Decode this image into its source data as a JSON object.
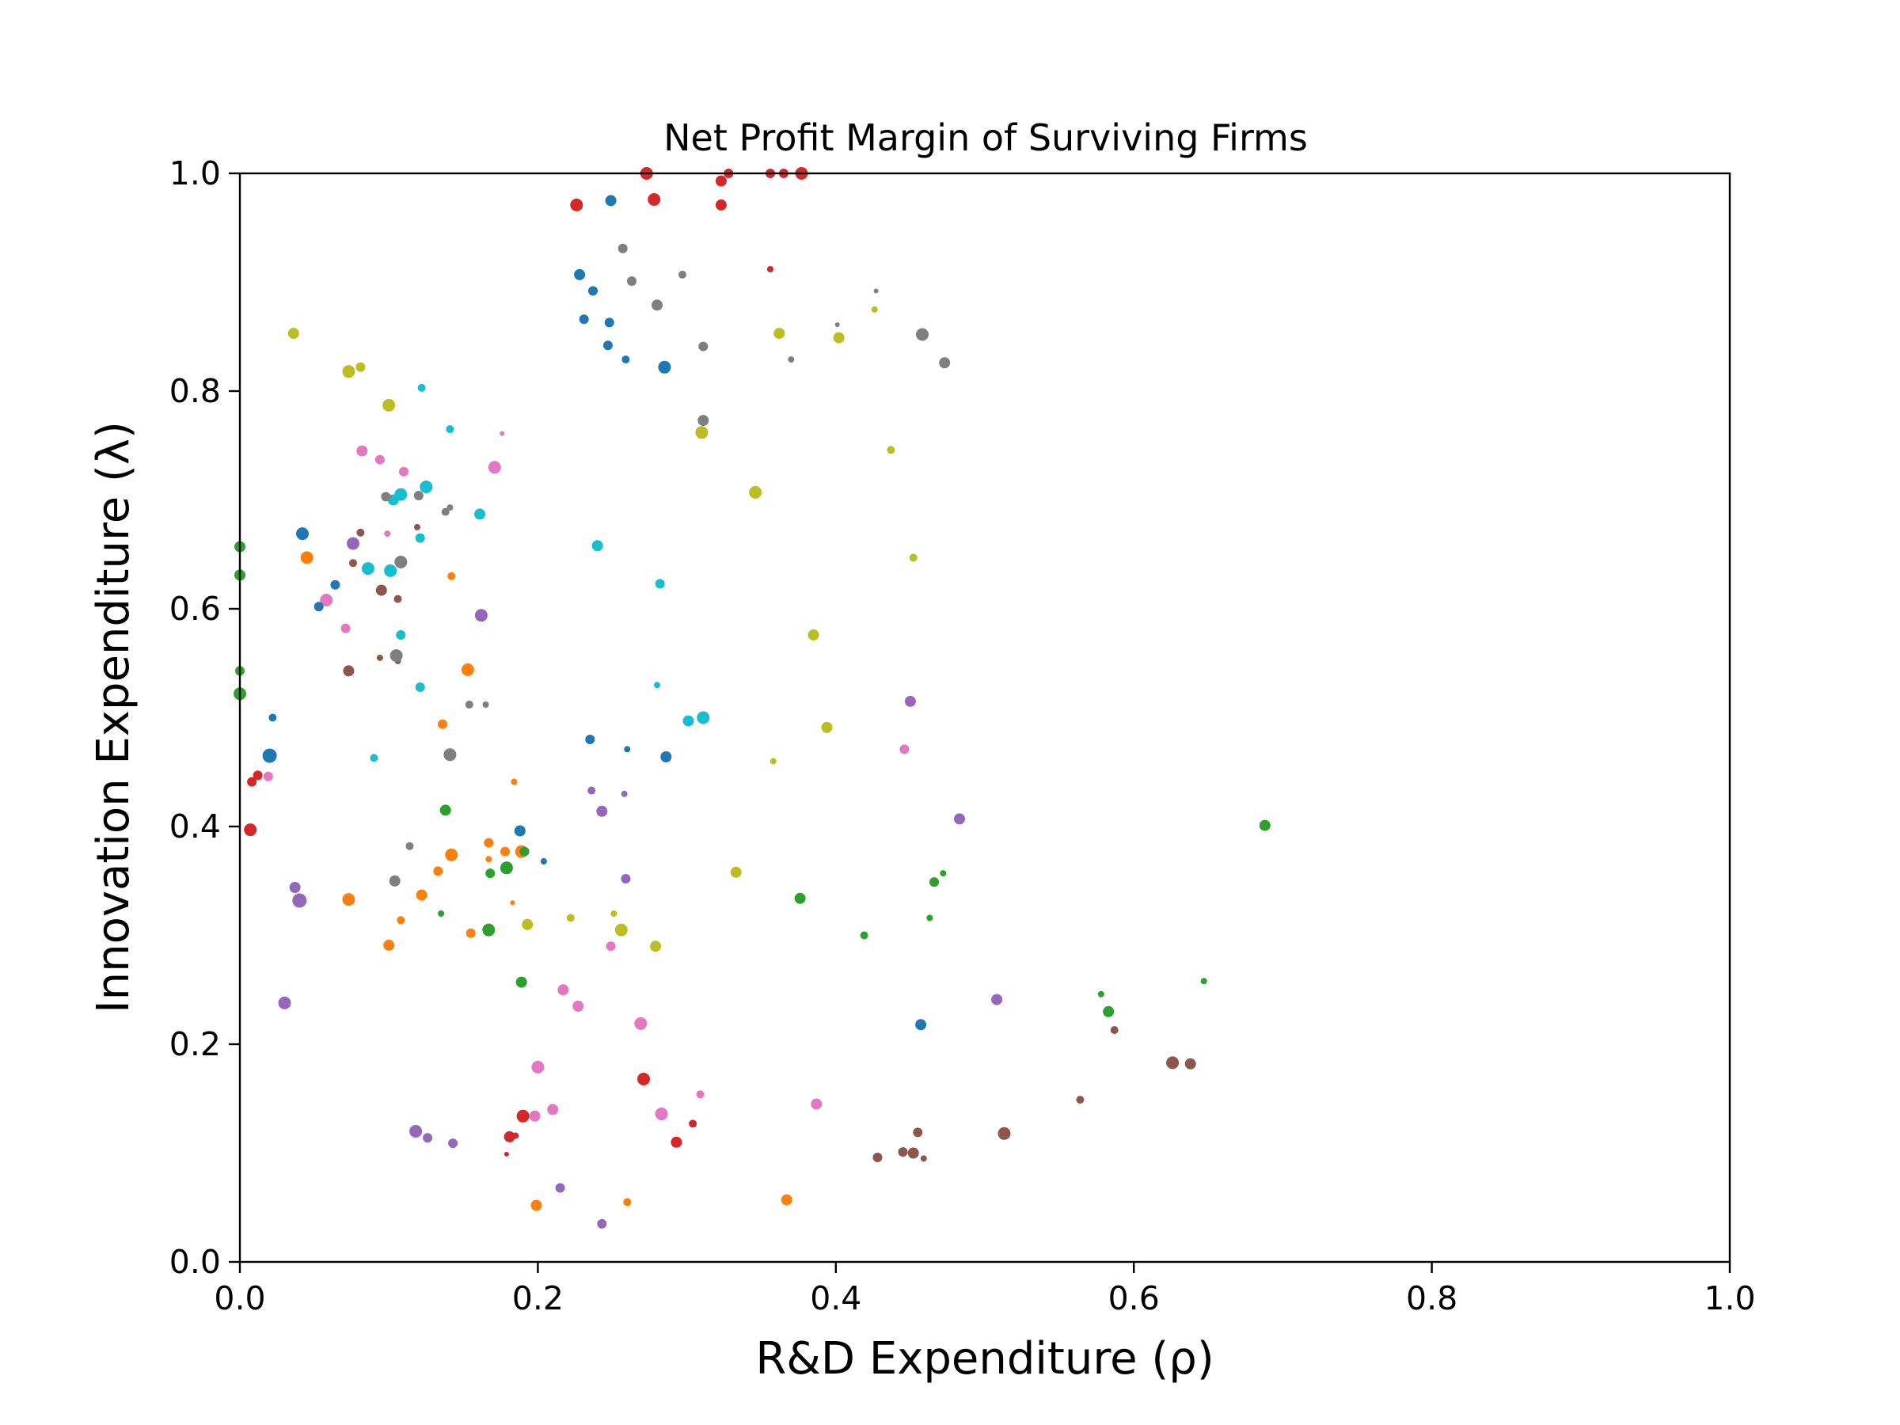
{
  "chart_data": {
    "type": "scatter",
    "title": "Net Profit Margin of Surviving Firms",
    "xlabel": "R&D Expenditure (ρ)",
    "ylabel": "Innovation Expenditure (λ)",
    "xlim": [
      0,
      1
    ],
    "ylim": [
      0,
      1
    ],
    "xticks": [
      "0.0",
      "0.2",
      "0.4",
      "0.6",
      "0.8",
      "1.0"
    ],
    "yticks": [
      "0.0",
      "0.2",
      "0.4",
      "0.6",
      "0.8",
      "1.0"
    ],
    "grid": false,
    "legend": "none",
    "colors": {
      "blue": "#1f77b4",
      "orange": "#ff7f0e",
      "green": "#2ca02c",
      "red": "#d62728",
      "purple": "#9467bd",
      "brown": "#8c564b",
      "pink": "#e377c2",
      "gray": "#7f7f7f",
      "olive": "#bcbd22",
      "cyan": "#17becf"
    },
    "points": [
      {
        "x": 0.226,
        "y": 0.971,
        "c": "red",
        "s": 8
      },
      {
        "x": 0.273,
        "y": 1.0,
        "c": "red",
        "s": 8
      },
      {
        "x": 0.278,
        "y": 0.976,
        "c": "red",
        "s": 8
      },
      {
        "x": 0.323,
        "y": 0.993,
        "c": "red",
        "s": 7
      },
      {
        "x": 0.328,
        "y": 1.0,
        "c": "red",
        "s": 6
      },
      {
        "x": 0.323,
        "y": 0.971,
        "c": "red",
        "s": 7
      },
      {
        "x": 0.356,
        "y": 1.0,
        "c": "red",
        "s": 6
      },
      {
        "x": 0.365,
        "y": 1.0,
        "c": "red",
        "s": 6
      },
      {
        "x": 0.377,
        "y": 1.0,
        "c": "red",
        "s": 8
      },
      {
        "x": 0.356,
        "y": 0.912,
        "c": "red",
        "s": 4
      },
      {
        "x": 0.249,
        "y": 0.975,
        "c": "blue",
        "s": 7
      },
      {
        "x": 0.228,
        "y": 0.907,
        "c": "blue",
        "s": 7
      },
      {
        "x": 0.237,
        "y": 0.892,
        "c": "blue",
        "s": 6
      },
      {
        "x": 0.231,
        "y": 0.866,
        "c": "blue",
        "s": 6
      },
      {
        "x": 0.248,
        "y": 0.863,
        "c": "blue",
        "s": 6
      },
      {
        "x": 0.247,
        "y": 0.842,
        "c": "blue",
        "s": 6
      },
      {
        "x": 0.259,
        "y": 0.829,
        "c": "blue",
        "s": 5
      },
      {
        "x": 0.285,
        "y": 0.822,
        "c": "blue",
        "s": 8
      },
      {
        "x": 0.257,
        "y": 0.931,
        "c": "gray",
        "s": 6
      },
      {
        "x": 0.263,
        "y": 0.901,
        "c": "gray",
        "s": 6
      },
      {
        "x": 0.297,
        "y": 0.907,
        "c": "gray",
        "s": 5
      },
      {
        "x": 0.28,
        "y": 0.879,
        "c": "gray",
        "s": 7
      },
      {
        "x": 0.311,
        "y": 0.841,
        "c": "gray",
        "s": 6
      },
      {
        "x": 0.37,
        "y": 0.829,
        "c": "gray",
        "s": 4
      },
      {
        "x": 0.427,
        "y": 0.892,
        "c": "gray",
        "s": 3
      },
      {
        "x": 0.401,
        "y": 0.861,
        "c": "gray",
        "s": 3
      },
      {
        "x": 0.458,
        "y": 0.852,
        "c": "gray",
        "s": 8
      },
      {
        "x": 0.473,
        "y": 0.826,
        "c": "gray",
        "s": 7
      },
      {
        "x": 0.311,
        "y": 0.773,
        "c": "gray",
        "s": 7
      },
      {
        "x": 0.31,
        "y": 0.762,
        "c": "olive",
        "s": 8
      },
      {
        "x": 0.362,
        "y": 0.853,
        "c": "olive",
        "s": 7
      },
      {
        "x": 0.402,
        "y": 0.849,
        "c": "olive",
        "s": 7
      },
      {
        "x": 0.426,
        "y": 0.875,
        "c": "olive",
        "s": 4
      },
      {
        "x": 0.437,
        "y": 0.746,
        "c": "olive",
        "s": 5
      },
      {
        "x": 0.346,
        "y": 0.707,
        "c": "olive",
        "s": 8
      },
      {
        "x": 0.452,
        "y": 0.647,
        "c": "olive",
        "s": 5
      },
      {
        "x": 0.385,
        "y": 0.576,
        "c": "olive",
        "s": 7
      },
      {
        "x": 0.394,
        "y": 0.491,
        "c": "olive",
        "s": 7
      },
      {
        "x": 0.358,
        "y": 0.46,
        "c": "olive",
        "s": 4
      },
      {
        "x": 0.333,
        "y": 0.358,
        "c": "olive",
        "s": 7
      },
      {
        "x": 0.036,
        "y": 0.853,
        "c": "olive",
        "s": 7
      },
      {
        "x": 0.073,
        "y": 0.818,
        "c": "olive",
        "s": 8
      },
      {
        "x": 0.081,
        "y": 0.822,
        "c": "olive",
        "s": 6
      },
      {
        "x": 0.1,
        "y": 0.787,
        "c": "olive",
        "s": 8
      },
      {
        "x": 0.193,
        "y": 0.31,
        "c": "olive",
        "s": 7
      },
      {
        "x": 0.222,
        "y": 0.316,
        "c": "olive",
        "s": 5
      },
      {
        "x": 0.251,
        "y": 0.32,
        "c": "olive",
        "s": 4
      },
      {
        "x": 0.256,
        "y": 0.305,
        "c": "olive",
        "s": 8
      },
      {
        "x": 0.279,
        "y": 0.29,
        "c": "olive",
        "s": 7
      },
      {
        "x": 0.122,
        "y": 0.803,
        "c": "cyan",
        "s": 5
      },
      {
        "x": 0.141,
        "y": 0.765,
        "c": "cyan",
        "s": 5
      },
      {
        "x": 0.125,
        "y": 0.712,
        "c": "cyan",
        "s": 8
      },
      {
        "x": 0.108,
        "y": 0.705,
        "c": "cyan",
        "s": 8
      },
      {
        "x": 0.103,
        "y": 0.7,
        "c": "cyan",
        "s": 7
      },
      {
        "x": 0.161,
        "y": 0.687,
        "c": "cyan",
        "s": 7
      },
      {
        "x": 0.121,
        "y": 0.665,
        "c": "cyan",
        "s": 6
      },
      {
        "x": 0.086,
        "y": 0.637,
        "c": "cyan",
        "s": 8
      },
      {
        "x": 0.101,
        "y": 0.635,
        "c": "cyan",
        "s": 8
      },
      {
        "x": 0.108,
        "y": 0.576,
        "c": "cyan",
        "s": 6
      },
      {
        "x": 0.121,
        "y": 0.528,
        "c": "cyan",
        "s": 6
      },
      {
        "x": 0.24,
        "y": 0.658,
        "c": "cyan",
        "s": 7
      },
      {
        "x": 0.282,
        "y": 0.623,
        "c": "cyan",
        "s": 6
      },
      {
        "x": 0.28,
        "y": 0.53,
        "c": "cyan",
        "s": 4
      },
      {
        "x": 0.301,
        "y": 0.497,
        "c": "cyan",
        "s": 7
      },
      {
        "x": 0.311,
        "y": 0.5,
        "c": "cyan",
        "s": 8
      },
      {
        "x": 0.09,
        "y": 0.463,
        "c": "cyan",
        "s": 5
      },
      {
        "x": 0.082,
        "y": 0.745,
        "c": "pink",
        "s": 7
      },
      {
        "x": 0.094,
        "y": 0.737,
        "c": "pink",
        "s": 6
      },
      {
        "x": 0.11,
        "y": 0.726,
        "c": "pink",
        "s": 6
      },
      {
        "x": 0.171,
        "y": 0.73,
        "c": "pink",
        "s": 8
      },
      {
        "x": 0.176,
        "y": 0.761,
        "c": "pink",
        "s": 3
      },
      {
        "x": 0.099,
        "y": 0.669,
        "c": "pink",
        "s": 4
      },
      {
        "x": 0.058,
        "y": 0.608,
        "c": "pink",
        "s": 8
      },
      {
        "x": 0.071,
        "y": 0.582,
        "c": "pink",
        "s": 6
      },
      {
        "x": 0.019,
        "y": 0.446,
        "c": "pink",
        "s": 6
      },
      {
        "x": 0.446,
        "y": 0.471,
        "c": "pink",
        "s": 6
      },
      {
        "x": 0.217,
        "y": 0.25,
        "c": "pink",
        "s": 7
      },
      {
        "x": 0.227,
        "y": 0.235,
        "c": "pink",
        "s": 7
      },
      {
        "x": 0.269,
        "y": 0.219,
        "c": "pink",
        "s": 8
      },
      {
        "x": 0.2,
        "y": 0.179,
        "c": "pink",
        "s": 8
      },
      {
        "x": 0.21,
        "y": 0.14,
        "c": "pink",
        "s": 7
      },
      {
        "x": 0.198,
        "y": 0.134,
        "c": "pink",
        "s": 7
      },
      {
        "x": 0.283,
        "y": 0.136,
        "c": "pink",
        "s": 8
      },
      {
        "x": 0.309,
        "y": 0.154,
        "c": "pink",
        "s": 5
      },
      {
        "x": 0.387,
        "y": 0.145,
        "c": "pink",
        "s": 7
      },
      {
        "x": 0.249,
        "y": 0.29,
        "c": "pink",
        "s": 6
      },
      {
        "x": 0.042,
        "y": 0.669,
        "c": "blue",
        "s": 8
      },
      {
        "x": 0.064,
        "y": 0.622,
        "c": "blue",
        "s": 6
      },
      {
        "x": 0.053,
        "y": 0.602,
        "c": "blue",
        "s": 6
      },
      {
        "x": 0.022,
        "y": 0.5,
        "c": "blue",
        "s": 5
      },
      {
        "x": 0.02,
        "y": 0.465,
        "c": "blue",
        "s": 9
      },
      {
        "x": 0.235,
        "y": 0.48,
        "c": "blue",
        "s": 6
      },
      {
        "x": 0.26,
        "y": 0.471,
        "c": "blue",
        "s": 4
      },
      {
        "x": 0.286,
        "y": 0.464,
        "c": "blue",
        "s": 7
      },
      {
        "x": 0.188,
        "y": 0.396,
        "c": "blue",
        "s": 7
      },
      {
        "x": 0.204,
        "y": 0.368,
        "c": "blue",
        "s": 4
      },
      {
        "x": 0.457,
        "y": 0.218,
        "c": "blue",
        "s": 7
      },
      {
        "x": 0.045,
        "y": 0.647,
        "c": "orange",
        "s": 8
      },
      {
        "x": 0.142,
        "y": 0.63,
        "c": "orange",
        "s": 5
      },
      {
        "x": 0.153,
        "y": 0.544,
        "c": "orange",
        "s": 8
      },
      {
        "x": 0.136,
        "y": 0.494,
        "c": "orange",
        "s": 6
      },
      {
        "x": 0.184,
        "y": 0.441,
        "c": "orange",
        "s": 4
      },
      {
        "x": 0.167,
        "y": 0.385,
        "c": "orange",
        "s": 6
      },
      {
        "x": 0.178,
        "y": 0.377,
        "c": "orange",
        "s": 6
      },
      {
        "x": 0.189,
        "y": 0.377,
        "c": "orange",
        "s": 8
      },
      {
        "x": 0.142,
        "y": 0.374,
        "c": "orange",
        "s": 8
      },
      {
        "x": 0.167,
        "y": 0.37,
        "c": "orange",
        "s": 4
      },
      {
        "x": 0.133,
        "y": 0.359,
        "c": "orange",
        "s": 6
      },
      {
        "x": 0.122,
        "y": 0.337,
        "c": "orange",
        "s": 7
      },
      {
        "x": 0.073,
        "y": 0.333,
        "c": "orange",
        "s": 8
      },
      {
        "x": 0.183,
        "y": 0.33,
        "c": "orange",
        "s": 3
      },
      {
        "x": 0.108,
        "y": 0.314,
        "c": "orange",
        "s": 5
      },
      {
        "x": 0.155,
        "y": 0.302,
        "c": "orange",
        "s": 6
      },
      {
        "x": 0.1,
        "y": 0.291,
        "c": "orange",
        "s": 7
      },
      {
        "x": 0.199,
        "y": 0.052,
        "c": "orange",
        "s": 7
      },
      {
        "x": 0.26,
        "y": 0.055,
        "c": "orange",
        "s": 5
      },
      {
        "x": 0.367,
        "y": 0.057,
        "c": "orange",
        "s": 7
      },
      {
        "x": 0.0,
        "y": 0.657,
        "c": "green",
        "s": 7
      },
      {
        "x": 0.0,
        "y": 0.631,
        "c": "green",
        "s": 7
      },
      {
        "x": 0.0,
        "y": 0.543,
        "c": "green",
        "s": 6
      },
      {
        "x": 0.0,
        "y": 0.522,
        "c": "green",
        "s": 8
      },
      {
        "x": 0.138,
        "y": 0.415,
        "c": "green",
        "s": 7
      },
      {
        "x": 0.191,
        "y": 0.377,
        "c": "green",
        "s": 6
      },
      {
        "x": 0.179,
        "y": 0.362,
        "c": "green",
        "s": 8
      },
      {
        "x": 0.168,
        "y": 0.357,
        "c": "green",
        "s": 6
      },
      {
        "x": 0.135,
        "y": 0.32,
        "c": "green",
        "s": 4
      },
      {
        "x": 0.167,
        "y": 0.305,
        "c": "green",
        "s": 8
      },
      {
        "x": 0.189,
        "y": 0.257,
        "c": "green",
        "s": 7
      },
      {
        "x": 0.376,
        "y": 0.334,
        "c": "green",
        "s": 7
      },
      {
        "x": 0.419,
        "y": 0.3,
        "c": "green",
        "s": 5
      },
      {
        "x": 0.463,
        "y": 0.316,
        "c": "green",
        "s": 4
      },
      {
        "x": 0.466,
        "y": 0.349,
        "c": "green",
        "s": 6
      },
      {
        "x": 0.472,
        "y": 0.357,
        "c": "green",
        "s": 4
      },
      {
        "x": 0.578,
        "y": 0.246,
        "c": "green",
        "s": 4
      },
      {
        "x": 0.583,
        "y": 0.23,
        "c": "green",
        "s": 7
      },
      {
        "x": 0.647,
        "y": 0.258,
        "c": "green",
        "s": 4
      },
      {
        "x": 0.688,
        "y": 0.401,
        "c": "green",
        "s": 7
      },
      {
        "x": 0.008,
        "y": 0.441,
        "c": "red",
        "s": 6
      },
      {
        "x": 0.012,
        "y": 0.447,
        "c": "red",
        "s": 6
      },
      {
        "x": 0.007,
        "y": 0.397,
        "c": "red",
        "s": 8
      },
      {
        "x": 0.271,
        "y": 0.168,
        "c": "red",
        "s": 8
      },
      {
        "x": 0.19,
        "y": 0.134,
        "c": "red",
        "s": 8
      },
      {
        "x": 0.304,
        "y": 0.127,
        "c": "red",
        "s": 5
      },
      {
        "x": 0.181,
        "y": 0.115,
        "c": "red",
        "s": 7
      },
      {
        "x": 0.185,
        "y": 0.116,
        "c": "red",
        "s": 4
      },
      {
        "x": 0.293,
        "y": 0.11,
        "c": "red",
        "s": 7
      },
      {
        "x": 0.179,
        "y": 0.099,
        "c": "red",
        "s": 3
      },
      {
        "x": 0.162,
        "y": 0.594,
        "c": "purple",
        "s": 8
      },
      {
        "x": 0.45,
        "y": 0.515,
        "c": "purple",
        "s": 7
      },
      {
        "x": 0.236,
        "y": 0.433,
        "c": "purple",
        "s": 5
      },
      {
        "x": 0.258,
        "y": 0.43,
        "c": "purple",
        "s": 4
      },
      {
        "x": 0.243,
        "y": 0.414,
        "c": "purple",
        "s": 7
      },
      {
        "x": 0.483,
        "y": 0.407,
        "c": "purple",
        "s": 7
      },
      {
        "x": 0.259,
        "y": 0.352,
        "c": "purple",
        "s": 6
      },
      {
        "x": 0.037,
        "y": 0.344,
        "c": "purple",
        "s": 7
      },
      {
        "x": 0.04,
        "y": 0.332,
        "c": "purple",
        "s": 9
      },
      {
        "x": 0.03,
        "y": 0.238,
        "c": "purple",
        "s": 8
      },
      {
        "x": 0.508,
        "y": 0.241,
        "c": "purple",
        "s": 7
      },
      {
        "x": 0.118,
        "y": 0.12,
        "c": "purple",
        "s": 8
      },
      {
        "x": 0.126,
        "y": 0.114,
        "c": "purple",
        "s": 6
      },
      {
        "x": 0.143,
        "y": 0.109,
        "c": "purple",
        "s": 6
      },
      {
        "x": 0.215,
        "y": 0.068,
        "c": "purple",
        "s": 6
      },
      {
        "x": 0.243,
        "y": 0.035,
        "c": "purple",
        "s": 6
      },
      {
        "x": 0.081,
        "y": 0.67,
        "c": "brown",
        "s": 5
      },
      {
        "x": 0.076,
        "y": 0.642,
        "c": "brown",
        "s": 5
      },
      {
        "x": 0.095,
        "y": 0.617,
        "c": "brown",
        "s": 7
      },
      {
        "x": 0.106,
        "y": 0.609,
        "c": "brown",
        "s": 5
      },
      {
        "x": 0.073,
        "y": 0.543,
        "c": "brown",
        "s": 7
      },
      {
        "x": 0.094,
        "y": 0.555,
        "c": "brown",
        "s": 4
      },
      {
        "x": 0.106,
        "y": 0.552,
        "c": "brown",
        "s": 4
      },
      {
        "x": 0.119,
        "y": 0.675,
        "c": "brown",
        "s": 4
      },
      {
        "x": 0.626,
        "y": 0.183,
        "c": "brown",
        "s": 8
      },
      {
        "x": 0.638,
        "y": 0.182,
        "c": "brown",
        "s": 7
      },
      {
        "x": 0.587,
        "y": 0.213,
        "c": "brown",
        "s": 5
      },
      {
        "x": 0.564,
        "y": 0.149,
        "c": "brown",
        "s": 5
      },
      {
        "x": 0.513,
        "y": 0.118,
        "c": "brown",
        "s": 8
      },
      {
        "x": 0.455,
        "y": 0.119,
        "c": "brown",
        "s": 6
      },
      {
        "x": 0.428,
        "y": 0.096,
        "c": "brown",
        "s": 6
      },
      {
        "x": 0.445,
        "y": 0.101,
        "c": "brown",
        "s": 6
      },
      {
        "x": 0.452,
        "y": 0.1,
        "c": "brown",
        "s": 7
      },
      {
        "x": 0.459,
        "y": 0.095,
        "c": "brown",
        "s": 4
      },
      {
        "x": 0.098,
        "y": 0.703,
        "c": "gray",
        "s": 6
      },
      {
        "x": 0.12,
        "y": 0.704,
        "c": "gray",
        "s": 6
      },
      {
        "x": 0.141,
        "y": 0.693,
        "c": "gray",
        "s": 4
      },
      {
        "x": 0.138,
        "y": 0.689,
        "c": "gray",
        "s": 5
      },
      {
        "x": 0.108,
        "y": 0.643,
        "c": "gray",
        "s": 8
      },
      {
        "x": 0.105,
        "y": 0.557,
        "c": "gray",
        "s": 8
      },
      {
        "x": 0.154,
        "y": 0.512,
        "c": "gray",
        "s": 5
      },
      {
        "x": 0.165,
        "y": 0.512,
        "c": "gray",
        "s": 4
      },
      {
        "x": 0.141,
        "y": 0.466,
        "c": "gray",
        "s": 8
      },
      {
        "x": 0.114,
        "y": 0.382,
        "c": "gray",
        "s": 5
      },
      {
        "x": 0.104,
        "y": 0.35,
        "c": "gray",
        "s": 7
      },
      {
        "x": 0.076,
        "y": 0.66,
        "c": "purple",
        "s": 8
      }
    ]
  }
}
